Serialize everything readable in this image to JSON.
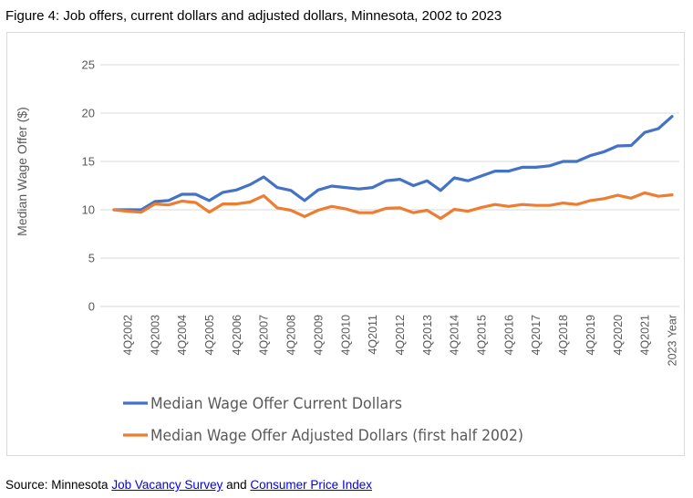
{
  "title": "Figure 4: Job offers, current dollars and adjusted dollars, Minnesota, 2002 to 2023",
  "source": {
    "prefix": "Source: Minnesota ",
    "link1": "Job Vacancy Survey",
    "middle": " and ",
    "link2": "Consumer Price Index"
  },
  "chart_data": {
    "type": "line",
    "title": "",
    "xlabel": "",
    "ylabel": "Median Wage Offer ($)",
    "ylim": [
      0,
      25
    ],
    "yticks": [
      "0",
      "5",
      "10",
      "15",
      "20",
      "25"
    ],
    "grid": true,
    "legend_position": "bottom",
    "x_labels": [
      "",
      "4Q2002",
      "",
      "4Q2003",
      "",
      "4Q2004",
      "",
      "4Q2005",
      "",
      "4Q2006",
      "",
      "4Q2007",
      "",
      "4Q2008",
      "",
      "4Q2009",
      "",
      "4Q2010",
      "",
      "4Q2011",
      "",
      "4Q2012",
      "",
      "4Q2013",
      "",
      "4Q2014",
      "",
      "4Q2015",
      "",
      "4Q2016",
      "",
      "4Q2017",
      "",
      "4Q2018",
      "",
      "4Q2019",
      "",
      "4Q2020",
      "",
      "4Q2021",
      "",
      "2023 Year"
    ],
    "series": [
      {
        "name": "Median Wage Offer Current Dollars",
        "color": "#4472c4",
        "values": [
          10.0,
          10.0,
          10.0,
          10.85,
          10.95,
          11.6,
          11.6,
          10.95,
          11.8,
          12.05,
          12.6,
          13.4,
          12.3,
          12.0,
          10.95,
          12.05,
          12.45,
          12.3,
          12.15,
          12.3,
          13.0,
          13.15,
          12.5,
          13.0,
          12.0,
          13.3,
          13.0,
          13.5,
          14.0,
          14.0,
          14.4,
          14.4,
          14.55,
          15.0,
          15.0,
          15.6,
          16.0,
          16.6,
          16.65,
          18.0,
          18.4,
          19.65
        ]
      },
      {
        "name": "Median Wage Offer Adjusted Dollars (first half 2002)",
        "color": "#ed7d31",
        "values": [
          10.0,
          9.85,
          9.75,
          10.6,
          10.5,
          10.9,
          10.75,
          9.75,
          10.6,
          10.6,
          10.8,
          11.45,
          10.2,
          9.95,
          9.3,
          9.95,
          10.35,
          10.1,
          9.7,
          9.7,
          10.15,
          10.2,
          9.7,
          9.95,
          9.1,
          10.05,
          9.85,
          10.25,
          10.55,
          10.35,
          10.55,
          10.45,
          10.45,
          10.7,
          10.55,
          10.95,
          11.15,
          11.5,
          11.2,
          11.75,
          11.4,
          11.55
        ]
      }
    ]
  }
}
